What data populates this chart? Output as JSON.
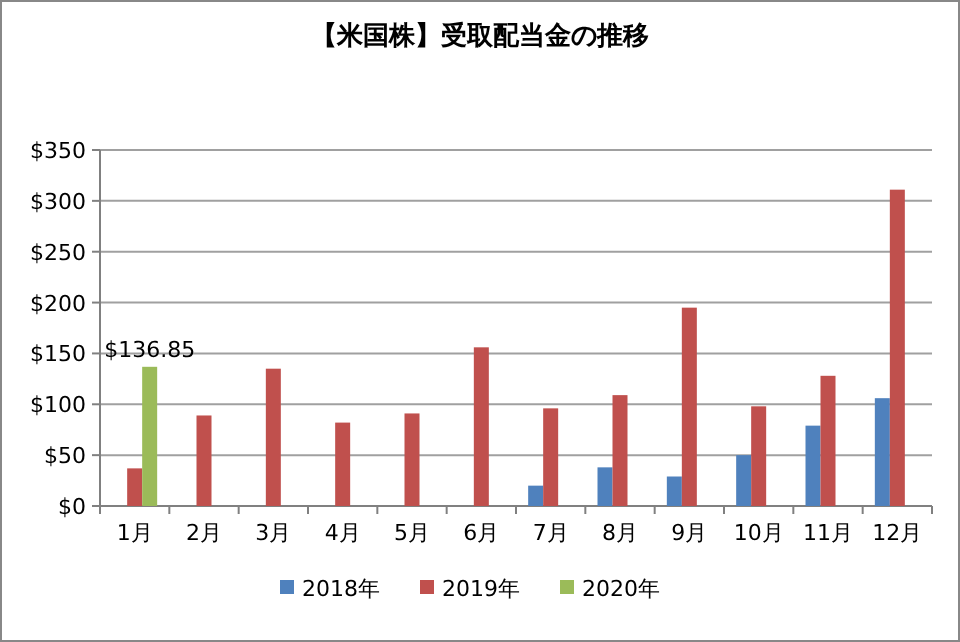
{
  "chart_data": {
    "type": "bar",
    "title": "【米国株】受取配当金の推移",
    "categories": [
      "1月",
      "2月",
      "3月",
      "4月",
      "5月",
      "6月",
      "7月",
      "8月",
      "9月",
      "10月",
      "11月",
      "12月"
    ],
    "series": [
      {
        "name": "2018年",
        "color": "#4f81bd",
        "values": [
          null,
          null,
          null,
          null,
          null,
          null,
          20,
          38,
          29,
          50,
          79,
          106
        ]
      },
      {
        "name": "2019年",
        "color": "#c0504d",
        "values": [
          37,
          89,
          135,
          82,
          91,
          156,
          96,
          109,
          195,
          98,
          128,
          311
        ]
      },
      {
        "name": "2020年",
        "color": "#9bbb59",
        "values": [
          136.85,
          null,
          null,
          null,
          null,
          null,
          null,
          null,
          null,
          null,
          null,
          null
        ],
        "value_labels": [
          "$136.85",
          null,
          null,
          null,
          null,
          null,
          null,
          null,
          null,
          null,
          null,
          null
        ]
      }
    ],
    "ylim": [
      0,
      350
    ],
    "yticks": [
      {
        "value": 0,
        "label": "$0"
      },
      {
        "value": 50,
        "label": "$50"
      },
      {
        "value": 100,
        "label": "$100"
      },
      {
        "value": 150,
        "label": "$150"
      },
      {
        "value": 200,
        "label": "$200"
      },
      {
        "value": 250,
        "label": "$250"
      },
      {
        "value": 300,
        "label": "$300"
      },
      {
        "value": 350,
        "label": "$350"
      }
    ],
    "grid": "y",
    "legend": "bottom"
  }
}
